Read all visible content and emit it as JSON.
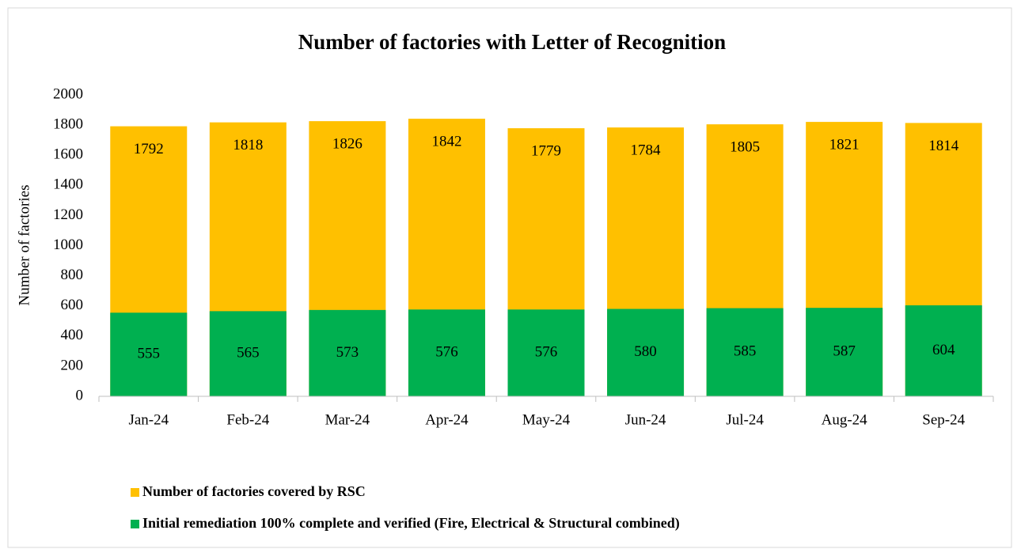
{
  "chart_data": {
    "type": "bar",
    "barmode": "overlay",
    "title": "Number of factories with Letter of Recognition",
    "y_label": "Number of factories",
    "categories": [
      "Jan-24",
      "Feb-24",
      "Mar-24",
      "Apr-24",
      "May-24",
      "Jun-24",
      "Jul-24",
      "Aug-24",
      "Sep-24"
    ],
    "series": [
      {
        "name": "Number of factories covered by RSC",
        "color": "#ffc000",
        "values": [
          1792,
          1818,
          1826,
          1842,
          1779,
          1784,
          1805,
          1821,
          1814
        ]
      },
      {
        "name": "Initial remediation 100% complete and verified (Fire, Electrical & Structural combined)",
        "color": "#00b050",
        "values": [
          555,
          565,
          573,
          576,
          576,
          580,
          585,
          587,
          604
        ]
      }
    ],
    "ylim": [
      0,
      2000
    ],
    "yticks": [
      0,
      200,
      400,
      600,
      800,
      1000,
      1200,
      1400,
      1600,
      1800,
      2000
    ],
    "grid": false
  }
}
